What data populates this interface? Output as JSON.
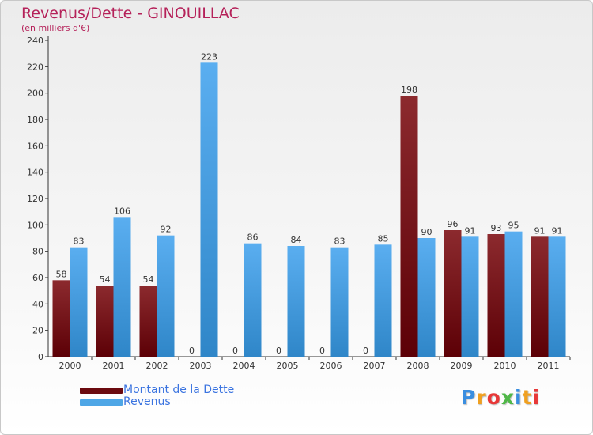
{
  "chart_data": {
    "type": "bar",
    "title": "Revenus/Dette - GINOUILLAC",
    "subtitle": "(en milliers d'€)",
    "categories": [
      "2000",
      "2001",
      "2002",
      "2003",
      "2004",
      "2005",
      "2006",
      "2007",
      "2008",
      "2009",
      "2010",
      "2011"
    ],
    "series": [
      {
        "name": "Montant de la Dette",
        "color": "#7a0e12",
        "values": [
          58,
          54,
          54,
          0,
          0,
          0,
          0,
          0,
          198,
          96,
          93,
          91
        ]
      },
      {
        "name": "Revenus",
        "color": "#4ea6e6",
        "values": [
          83,
          106,
          92,
          223,
          86,
          84,
          83,
          85,
          90,
          91,
          95,
          91
        ]
      }
    ],
    "ylim": [
      0,
      240
    ],
    "yticks": [
      0,
      20,
      40,
      60,
      80,
      100,
      120,
      140,
      160,
      180,
      200,
      220,
      240
    ],
    "grid": false,
    "legend": "bottom-left"
  },
  "legend": {
    "items": [
      {
        "label": "Montant de la Dette",
        "color": "#6b0a0f"
      },
      {
        "label": "Revenus",
        "color": "#4ea6e6"
      }
    ]
  },
  "logo": {
    "letters": [
      "P",
      "r",
      "o",
      "x",
      "i",
      "t",
      "i"
    ],
    "colors": [
      "#3a8ee0",
      "#f0a020",
      "#e83838",
      "#50b848",
      "#3a8ee0",
      "#f0a020",
      "#e83838"
    ]
  }
}
